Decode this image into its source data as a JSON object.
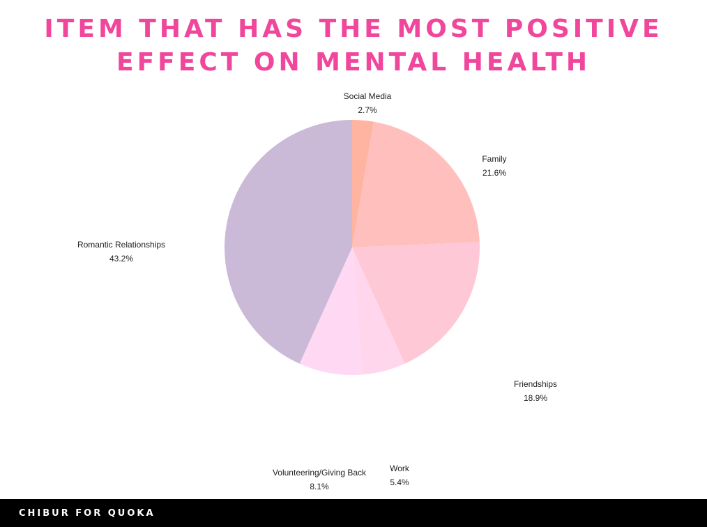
{
  "title": {
    "line1": "ITEM THAT HAS THE MOST POSITIVE",
    "line2": "EFFECT ON MENTAL HEALTH",
    "color": "#f0469b"
  },
  "footer": {
    "text": "CHIBUR FOR QUOKA",
    "background": "#000000"
  },
  "chart_data": {
    "type": "pie",
    "title": "ITEM THAT HAS THE MOST POSITIVE EFFECT ON MENTAL HEALTH",
    "slices": [
      {
        "label": "Social Media",
        "value": 2.7,
        "display": "2.7%",
        "color": "#ffb3a1"
      },
      {
        "label": "Family",
        "value": 21.6,
        "display": "21.6%",
        "color": "#ffbfbd"
      },
      {
        "label": "Friendships",
        "value": 18.9,
        "display": "18.9%",
        "color": "#ffc8d6"
      },
      {
        "label": "Work",
        "value": 5.4,
        "display": "5.4%",
        "color": "#ffd6ec"
      },
      {
        "label": "Volunteering/Giving Back",
        "value": 8.1,
        "display": "8.1%",
        "color": "#ffd9f4"
      },
      {
        "label": "Romantic Relationships",
        "value": 43.2,
        "display": "43.2%",
        "color": "#cbbad7"
      }
    ],
    "start": "top",
    "direction": "clockwise",
    "legend": "none"
  }
}
